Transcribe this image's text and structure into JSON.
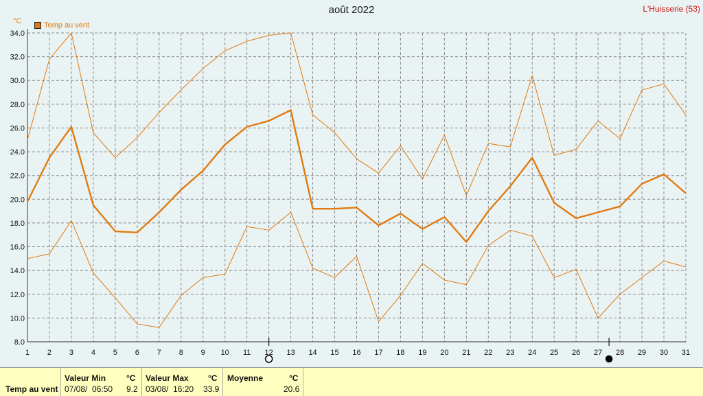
{
  "title": "août 2022",
  "station": "L'Huisserie (53)",
  "y_unit": "°C",
  "colors": {
    "series": "#e07a10",
    "grid": "#888888",
    "background": "#eaf3f3"
  },
  "moon_icons": [
    {
      "name": "full-moon-icon",
      "x_day": 12
    },
    {
      "name": "new-moon-icon",
      "x_day": 27.5
    }
  ],
  "chart_data": {
    "type": "line",
    "title": "août 2022",
    "ylabel": "°C",
    "legend": "top-left",
    "grid": true,
    "ylim": [
      8.0,
      34.0
    ],
    "yticks": [
      "8.0",
      "10.0",
      "12.0",
      "14.0",
      "16.0",
      "18.0",
      "20.0",
      "22.0",
      "24.0",
      "26.0",
      "28.0",
      "30.0",
      "32.0",
      "34.0"
    ],
    "x": [
      1,
      2,
      3,
      4,
      5,
      6,
      7,
      8,
      9,
      10,
      11,
      12,
      13,
      14,
      15,
      16,
      17,
      18,
      19,
      20,
      21,
      22,
      23,
      24,
      25,
      26,
      27,
      28,
      29,
      30,
      31
    ],
    "series": [
      {
        "name": "Temp au vent",
        "role": "mean",
        "values": [
          19.8,
          23.5,
          26.1,
          19.5,
          17.3,
          17.2,
          18.9,
          20.8,
          22.4,
          24.6,
          26.1,
          26.6,
          27.5,
          19.2,
          19.2,
          19.3,
          17.8,
          18.8,
          17.5,
          18.5,
          16.4,
          19.0,
          21.1,
          23.5,
          19.7,
          18.4,
          18.9,
          19.4,
          21.3,
          22.1,
          20.5
        ]
      },
      {
        "role": "max",
        "values": [
          25.0,
          31.8,
          34.0,
          25.6,
          23.5,
          25.2,
          27.3,
          29.2,
          31.0,
          32.5,
          33.3,
          33.8,
          34.0,
          27.1,
          25.6,
          23.4,
          22.2,
          24.5,
          21.7,
          25.4,
          20.3,
          24.7,
          24.4,
          30.4,
          23.7,
          24.2,
          26.6,
          25.1,
          29.2,
          29.7,
          27.1
        ]
      },
      {
        "role": "min",
        "values": [
          15.0,
          15.4,
          18.2,
          13.8,
          11.7,
          9.5,
          9.2,
          11.9,
          13.4,
          13.7,
          17.7,
          17.4,
          18.9,
          14.2,
          13.4,
          15.2,
          9.7,
          11.9,
          14.6,
          13.2,
          12.8,
          16.1,
          17.4,
          16.9,
          13.4,
          14.1,
          10.0,
          12.0,
          13.4,
          14.8,
          14.3
        ]
      }
    ]
  },
  "stats": {
    "row_label": "Temp au vent",
    "min": {
      "header": "Valeur Min",
      "unit": "°C",
      "when": "07/08/  06:50",
      "value": "9.2"
    },
    "max": {
      "header": "Valeur Max",
      "unit": "°C",
      "when": "03/08/  16:20",
      "value": "33.9"
    },
    "mean": {
      "header": "Moyenne",
      "unit": "°C",
      "value": "20.6"
    }
  }
}
